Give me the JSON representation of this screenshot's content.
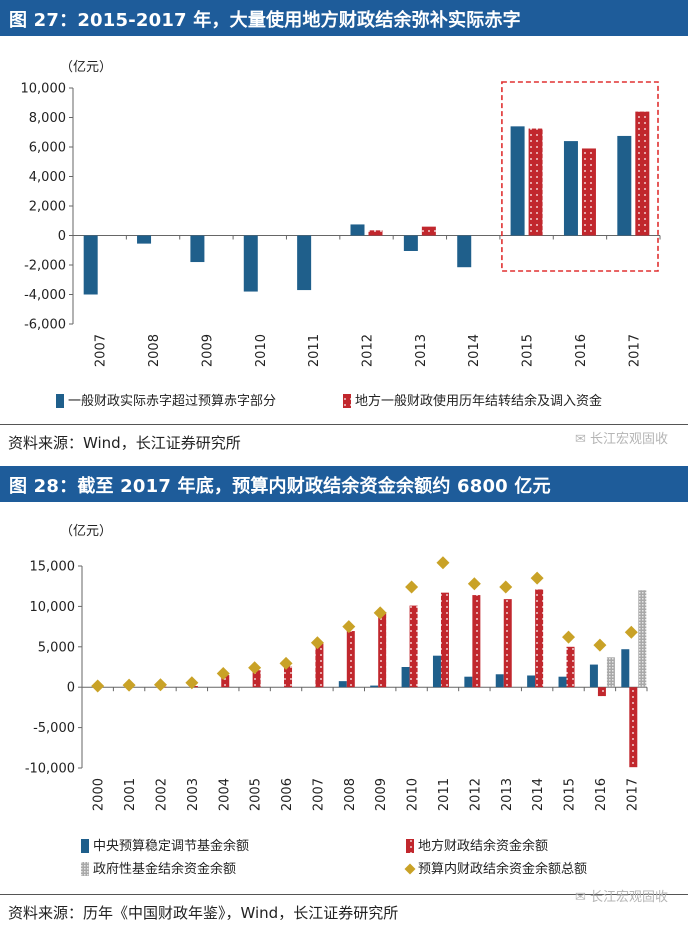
{
  "figure1": {
    "title": "图 27：2015-2017 年，大量使用地方财政结余弥补实际赤字",
    "source": "资料来源：Wind，长江证券研究所",
    "watermark": "长江宏观固收",
    "unit_label": "（亿元）"
  },
  "figure2": {
    "title": "图 28：截至 2017 年底，预算内财政结余资金余额约 6800 亿元",
    "source": "资料来源：历年《中国财政年鉴》，Wind，长江证券研究所",
    "watermark": "长江宏观固收",
    "unit_label": "（亿元）"
  },
  "colors": {
    "title_bg": "#1e5c9a",
    "blue": "#1f5f8b",
    "red": "#c1272d",
    "gray": "#b0b0b0",
    "gold": "#c9a227",
    "highlight_box": "#e03030"
  },
  "chart_data": [
    {
      "type": "bar",
      "title": "2015-2017 年，大量使用地方财政结余弥补实际赤字",
      "ylabel": "（亿元）",
      "ylim": [
        -6000,
        10000
      ],
      "yticks": [
        "10,000",
        "8,000",
        "6,000",
        "4,000",
        "2,000",
        "0",
        "-2,000",
        "-4,000",
        "-6,000"
      ],
      "categories": [
        "2007",
        "2008",
        "2009",
        "2010",
        "2011",
        "2012",
        "2013",
        "2014",
        "2015",
        "2016",
        "2017"
      ],
      "series": [
        {
          "name": "一般财政实际赤字超过预算赤字部分",
          "style": "blue",
          "values": [
            -4000,
            -550,
            -1800,
            -3800,
            -3700,
            750,
            -1050,
            -2150,
            7400,
            6400,
            6750
          ]
        },
        {
          "name": "地方一般财政使用历年结转结余及调入资金",
          "style": "red_dotted",
          "values": [
            null,
            null,
            null,
            null,
            null,
            350,
            600,
            null,
            7250,
            5900,
            8400
          ]
        }
      ],
      "highlight_categories": [
        "2015",
        "2016",
        "2017"
      ],
      "legend_position": "bottom"
    },
    {
      "type": "bar",
      "title": "截至 2017 年底，预算内财政结余资金余额约 6800 亿元",
      "ylabel": "（亿元）",
      "ylim": [
        -10000,
        15000
      ],
      "yticks": [
        "15,000",
        "10,000",
        "5,000",
        "0",
        "-5,000",
        "-10,000"
      ],
      "categories": [
        "2000",
        "2001",
        "2002",
        "2003",
        "2004",
        "2005",
        "2006",
        "2007",
        "2008",
        "2009",
        "2010",
        "2011",
        "2012",
        "2013",
        "2014",
        "2015",
        "2016",
        "2017"
      ],
      "series": [
        {
          "name": "中央预算稳定调节基金余额",
          "style": "blue",
          "values": [
            0,
            0,
            0,
            0,
            0,
            0,
            0,
            0,
            750,
            200,
            2500,
            3900,
            1300,
            1600,
            1450,
            1300,
            2800,
            4700
          ]
        },
        {
          "name": "地方财政结余资金余额",
          "style": "red_dotted",
          "values": [
            0,
            0,
            50,
            150,
            1500,
            2100,
            2600,
            5400,
            6950,
            9300,
            10100,
            11700,
            11400,
            10900,
            12100,
            5000,
            -1100,
            -9900
          ]
        },
        {
          "name": "政府性基金结余资金余额",
          "style": "gray_dotted",
          "values": [
            null,
            null,
            null,
            null,
            null,
            null,
            null,
            null,
            null,
            null,
            null,
            null,
            null,
            null,
            null,
            null,
            3700,
            12000
          ]
        },
        {
          "name": "预算内财政结余资金余额总额",
          "style": "gold_diamond",
          "values": [
            150,
            250,
            300,
            550,
            1700,
            2400,
            2950,
            5500,
            7500,
            9200,
            12400,
            15400,
            12800,
            12400,
            13500,
            6200,
            5200,
            6800
          ]
        }
      ],
      "legend_position": "bottom"
    }
  ]
}
